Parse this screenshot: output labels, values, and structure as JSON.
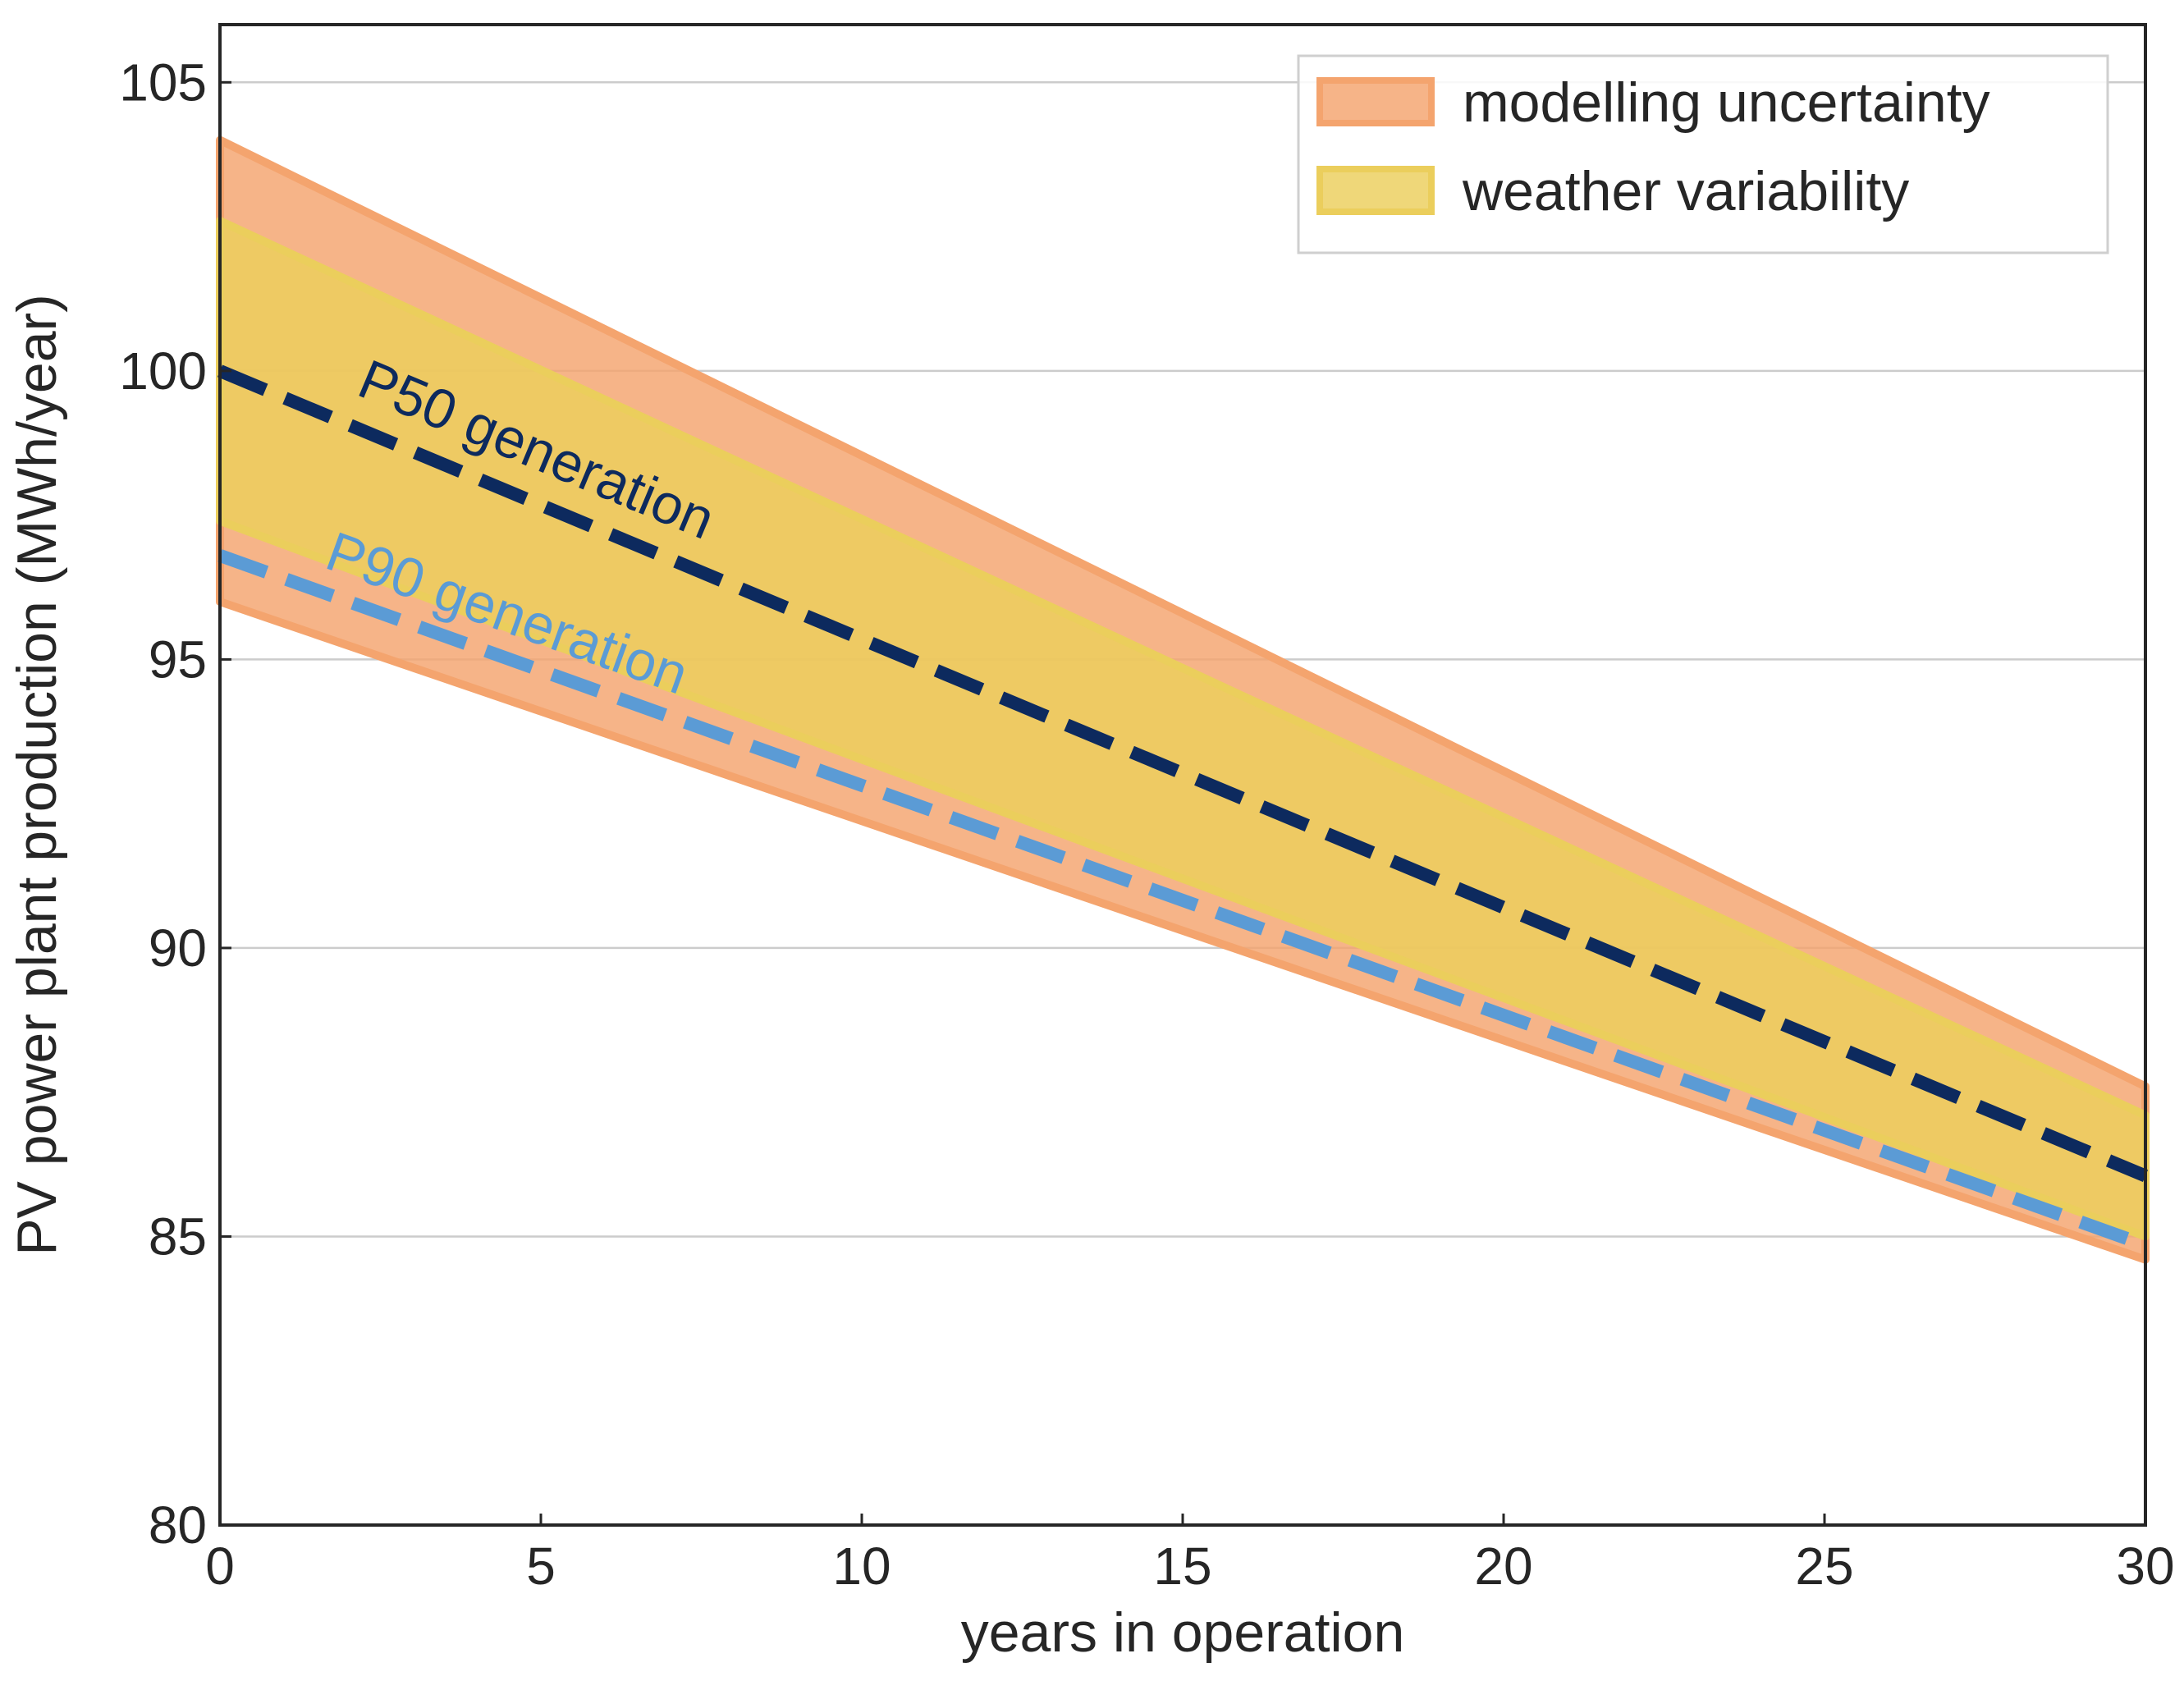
{
  "chart_data": {
    "type": "area",
    "xlabel": "years in operation",
    "ylabel": "PV power plant production (MWh/year)",
    "xlim": [
      0,
      30
    ],
    "ylim": [
      80,
      106
    ],
    "x_ticks": [
      0,
      5,
      10,
      15,
      20,
      25,
      30
    ],
    "y_ticks": [
      80,
      85,
      90,
      95,
      100,
      105
    ],
    "y_grid": true,
    "legend_position": "top-right",
    "x": [
      0,
      30
    ],
    "bands": [
      {
        "name": "modelling uncertainty",
        "lower": [
          96.0,
          84.6
        ],
        "upper": [
          104.0,
          87.6
        ],
        "color": "#F4A46E"
      },
      {
        "name": "weather variability",
        "lower": [
          97.4,
          85.0
        ],
        "upper": [
          102.6,
          87.1
        ],
        "color": "#EBCE5C"
      }
    ],
    "series": [
      {
        "name": "P50 generation",
        "values": [
          100.0,
          86.05
        ],
        "color": "#0D2A5E",
        "style": "dashed"
      },
      {
        "name": "P90 generation",
        "values": [
          96.8,
          84.85
        ],
        "color": "#5B9BD5",
        "style": "dashed"
      }
    ],
    "annotations": [
      {
        "text": "P50 generation",
        "x": 2.1,
        "y": 99.6,
        "color": "#0D2A5E"
      },
      {
        "text": "P90 generation",
        "x": 1.6,
        "y": 96.6,
        "color": "#5B9BD5"
      }
    ]
  }
}
